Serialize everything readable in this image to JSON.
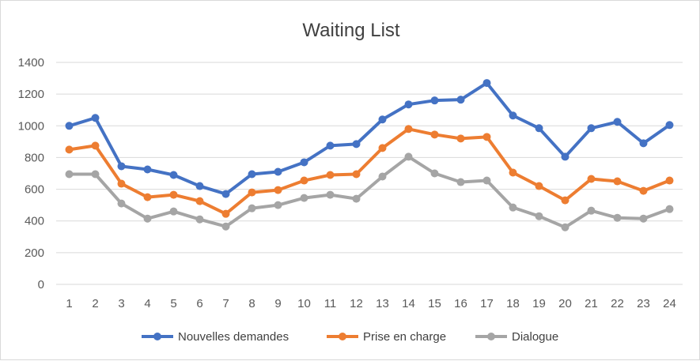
{
  "chart_data": {
    "type": "line",
    "title": "Waiting List",
    "xlabel": "",
    "ylabel": "",
    "ylim": [
      0,
      1400
    ],
    "y_ticks": [
      0,
      200,
      400,
      600,
      800,
      1000,
      1200,
      1400
    ],
    "grid": true,
    "legend_position": "bottom",
    "categories": [
      "1",
      "2",
      "3",
      "4",
      "5",
      "6",
      "7",
      "8",
      "9",
      "10",
      "11",
      "12",
      "13",
      "14",
      "15",
      "16",
      "17",
      "18",
      "19",
      "20",
      "21",
      "22",
      "23",
      "24"
    ],
    "series": [
      {
        "name": "Nouvelles demandes",
        "color": "#4472C4",
        "values": [
          1000,
          1050,
          745,
          725,
          690,
          620,
          570,
          695,
          710,
          770,
          875,
          885,
          1040,
          1135,
          1160,
          1165,
          1270,
          1065,
          985,
          805,
          985,
          1025,
          890,
          1005
        ]
      },
      {
        "name": "Prise en charge",
        "color": "#ED7D31",
        "values": [
          850,
          875,
          635,
          550,
          565,
          525,
          445,
          580,
          595,
          655,
          690,
          695,
          860,
          980,
          945,
          920,
          930,
          705,
          620,
          530,
          665,
          650,
          590,
          655
        ]
      },
      {
        "name": "Dialogue",
        "color": "#A5A5A5",
        "values": [
          695,
          695,
          510,
          415,
          460,
          410,
          365,
          480,
          500,
          545,
          565,
          540,
          680,
          805,
          700,
          645,
          655,
          485,
          430,
          360,
          465,
          420,
          415,
          475
        ]
      }
    ]
  }
}
